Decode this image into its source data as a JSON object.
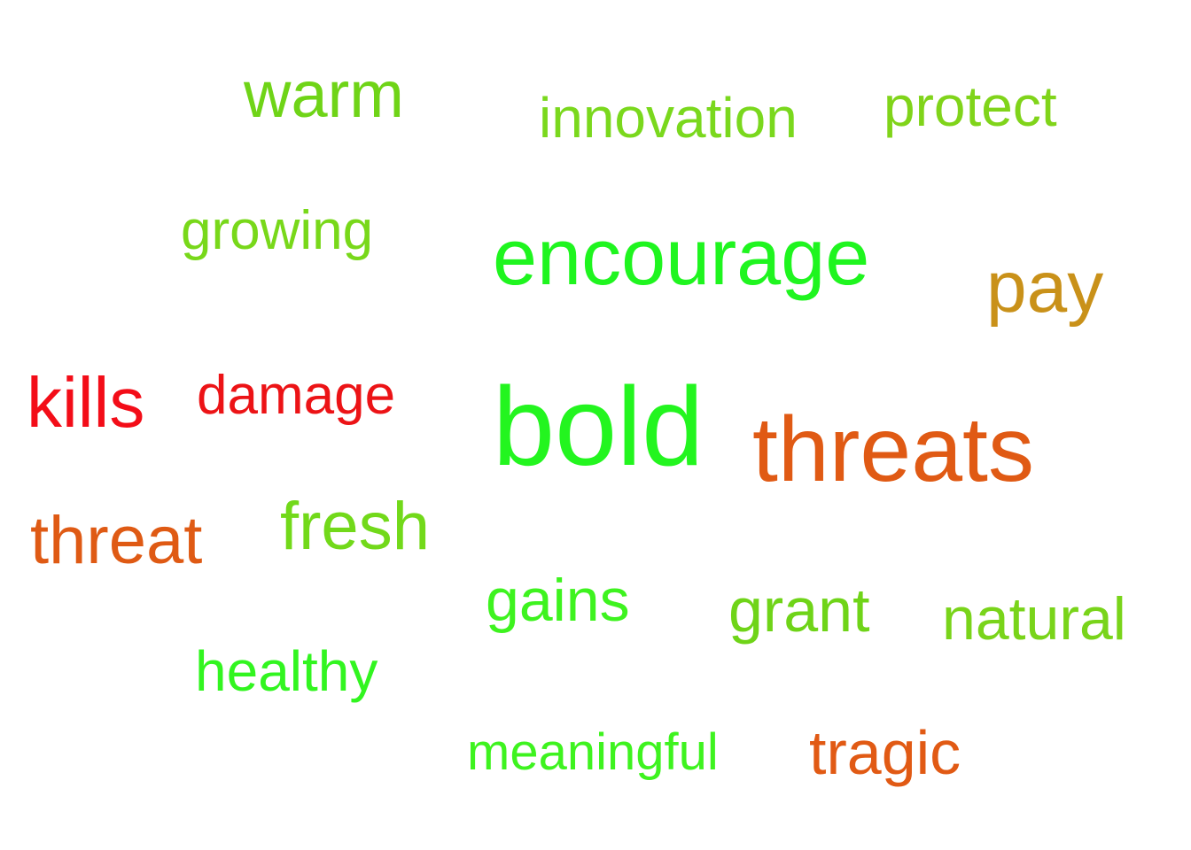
{
  "words": [
    {
      "id": "warm",
      "text": "warm",
      "color": "#6fd417"
    },
    {
      "id": "innovation",
      "text": "innovation",
      "color": "#7ad81d"
    },
    {
      "id": "protect",
      "text": "protect",
      "color": "#80d41a"
    },
    {
      "id": "growing",
      "text": "growing",
      "color": "#78d81a"
    },
    {
      "id": "encourage",
      "text": "encourage",
      "color": "#1ff51f"
    },
    {
      "id": "pay",
      "text": "pay",
      "color": "#c99119"
    },
    {
      "id": "kills",
      "text": "kills",
      "color": "#f30d18"
    },
    {
      "id": "damage",
      "text": "damage",
      "color": "#ec1316"
    },
    {
      "id": "bold",
      "text": "bold",
      "color": "#23f51f"
    },
    {
      "id": "threats",
      "text": "threats",
      "color": "#e05a14"
    },
    {
      "id": "threat",
      "text": "threat",
      "color": "#df5a14"
    },
    {
      "id": "fresh",
      "text": "fresh",
      "color": "#72d91a"
    },
    {
      "id": "gains",
      "text": "gains",
      "color": "#3ef31f"
    },
    {
      "id": "grant",
      "text": "grant",
      "color": "#6fd418"
    },
    {
      "id": "natural",
      "text": "natural",
      "color": "#79d41a"
    },
    {
      "id": "healthy",
      "text": "healthy",
      "color": "#32f520"
    },
    {
      "id": "meaningful",
      "text": "meaningful",
      "color": "#3ef31f"
    },
    {
      "id": "tragic",
      "text": "tragic",
      "color": "#e15a14"
    }
  ]
}
